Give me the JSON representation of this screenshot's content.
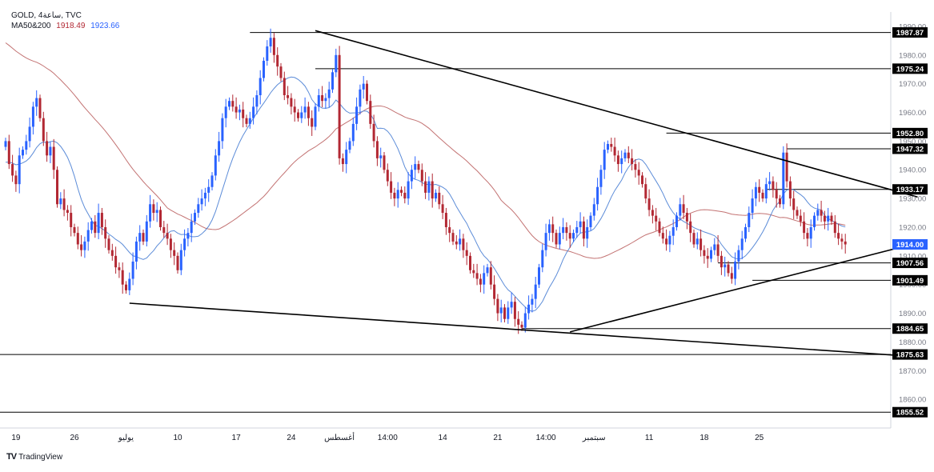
{
  "header": {
    "symbol_line": "GOLD, 4ساعة, TVC",
    "ma_label": "MA50&200",
    "ma50_value": "1918.49",
    "ma200_value": "1923.66"
  },
  "footer": {
    "brand": "TradingView",
    "logo_text": "TV"
  },
  "colors": {
    "bull": "#2962ff",
    "bear": "#b22833",
    "ma50": "#4a7fd4",
    "ma200": "#b85a5a",
    "trend": "#000000",
    "label_bg": "#000000",
    "label_fg": "#ffffff",
    "price_tag_bg": "#2962ff"
  },
  "chart_data": {
    "type": "candlestick",
    "symbol": "GOLD",
    "timeframe": "4ساعة",
    "ylim": [
      1850,
      1995
    ],
    "x_ticks": [
      "19",
      "26",
      "يوليو",
      "10",
      "17",
      "24",
      "أغسطس",
      "14:00",
      "14",
      "21",
      "14:00",
      "سبتمبر",
      "11",
      "18",
      "25"
    ],
    "x_tick_index": [
      3,
      20,
      35,
      50,
      67,
      83,
      97,
      111,
      127,
      143,
      157,
      171,
      187,
      203,
      219
    ],
    "y_ticks": [
      1990,
      1980,
      1970,
      1960,
      1950,
      1940,
      1930,
      1920,
      1910,
      1900,
      1890,
      1880,
      1870,
      1860
    ],
    "current_price": "1914.00",
    "horizontal_levels": [
      {
        "label": "1987.87",
        "value": 1987.87,
        "from": 71
      },
      {
        "label": "1975.24",
        "value": 1975.24,
        "from": 90
      },
      {
        "label": "1952.80",
        "value": 1952.8,
        "from": 192
      },
      {
        "label": "1947.32",
        "value": 1947.32,
        "from": 227
      },
      {
        "label": "1933.17",
        "value": 1933.17,
        "from": 221
      },
      {
        "label": "1907.56",
        "value": 1907.56,
        "from": 207
      },
      {
        "label": "1901.49",
        "value": 1901.49,
        "from": 217
      },
      {
        "label": "1884.65",
        "value": 1884.65,
        "from": 150
      },
      {
        "label": "1875.63",
        "value": 1875.63,
        "from": 0
      },
      {
        "label": "1855.52",
        "value": 1855.52,
        "from": 0
      }
    ],
    "trendlines": [
      {
        "from": [
          90,
          1988.5
        ],
        "to": [
          265,
          1930.5
        ]
      },
      {
        "from": [
          36,
          1893.5
        ],
        "to": [
          263,
          1875.0
        ]
      },
      {
        "from": [
          164,
          1883.5
        ],
        "to": [
          265,
          1914.5
        ]
      }
    ],
    "closes": [
      1950,
      1942,
      1938,
      1935,
      1945,
      1947,
      1950,
      1955,
      1962,
      1965,
      1958,
      1950,
      1945,
      1948,
      1940,
      1928,
      1930,
      1926,
      1925,
      1920,
      1918,
      1914,
      1912,
      1915,
      1919,
      1922,
      1918,
      1925,
      1920,
      1916,
      1912,
      1910,
      1906,
      1905,
      1900,
      1898,
      1902,
      1908,
      1915,
      1918,
      1915,
      1922,
      1928,
      1925,
      1926,
      1920,
      1918,
      1916,
      1912,
      1910,
      1905,
      1912,
      1916,
      1918,
      1922,
      1925,
      1928,
      1930,
      1932,
      1934,
      1938,
      1945,
      1950,
      1958,
      1962,
      1964,
      1962,
      1960,
      1961,
      1958,
      1956,
      1958,
      1962,
      1966,
      1972,
      1978,
      1983,
      1986,
      1980,
      1976,
      1972,
      1966,
      1965,
      1962,
      1960,
      1958,
      1960,
      1962,
      1958,
      1955,
      1962,
      1966,
      1964,
      1965,
      1968,
      1974,
      1980,
      1944,
      1942,
      1947,
      1950,
      1956,
      1962,
      1968,
      1970,
      1964,
      1956,
      1950,
      1944,
      1945,
      1940,
      1936,
      1932,
      1930,
      1933,
      1932,
      1930,
      1936,
      1940,
      1942,
      1940,
      1936,
      1932,
      1936,
      1930,
      1932,
      1928,
      1925,
      1920,
      1918,
      1915,
      1914,
      1916,
      1912,
      1910,
      1905,
      1904,
      1902,
      1900,
      1904,
      1906,
      1900,
      1895,
      1890,
      1892,
      1888,
      1892,
      1894,
      1888,
      1886,
      1885,
      1890,
      1893,
      1895,
      1900,
      1906,
      1912,
      1918,
      1921,
      1918,
      1914,
      1918,
      1920,
      1918,
      1916,
      1918,
      1920,
      1922,
      1916,
      1920,
      1924,
      1928,
      1934,
      1940,
      1947,
      1949,
      1948,
      1945,
      1942,
      1944,
      1946,
      1944,
      1942,
      1940,
      1938,
      1935,
      1930,
      1926,
      1924,
      1922,
      1918,
      1916,
      1914,
      1917,
      1920,
      1924,
      1928,
      1925,
      1922,
      1918,
      1914,
      1916,
      1912,
      1910,
      1909,
      1912,
      1914,
      1910,
      1906,
      1907,
      1904,
      1902,
      1908,
      1912,
      1916,
      1920,
      1925,
      1930,
      1934,
      1932,
      1930,
      1935,
      1936,
      1933,
      1930,
      1928,
      1946,
      1936,
      1930,
      1926,
      1924,
      1922,
      1918,
      1916,
      1920,
      1924,
      1926,
      1924,
      1922,
      1924,
      1922,
      1918,
      1916,
      1915,
      1914
    ]
  }
}
